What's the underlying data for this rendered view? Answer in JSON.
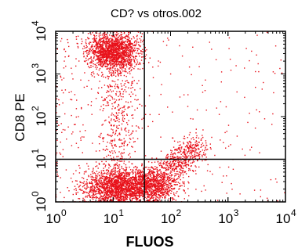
{
  "chart_data": {
    "type": "scatter",
    "title": "CD? vs otros.002",
    "xlabel": "FLUOS",
    "ylabel": "CD8 PE",
    "xscale": "log",
    "yscale": "log",
    "xlim": [
      1,
      10000
    ],
    "ylim": [
      1,
      10000
    ],
    "x_ticks": [
      {
        "base": "10",
        "exp": "0"
      },
      {
        "base": "10",
        "exp": "1"
      },
      {
        "base": "10",
        "exp": "2"
      },
      {
        "base": "10",
        "exp": "3"
      },
      {
        "base": "10",
        "exp": "4"
      }
    ],
    "y_ticks": [
      {
        "base": "10",
        "exp": "0"
      },
      {
        "base": "10",
        "exp": "1"
      },
      {
        "base": "10",
        "exp": "2"
      },
      {
        "base": "10",
        "exp": "3"
      },
      {
        "base": "10",
        "exp": "4"
      }
    ],
    "quadrant_gate": {
      "x": 35,
      "y": 10
    },
    "marker_color": "#e8121b",
    "populations": [
      {
        "name": "dense cluster, low/low",
        "center": [
          12,
          2.2
        ],
        "spread_decades": [
          0.3,
          0.2
        ],
        "relative_density": "very high"
      },
      {
        "name": "dense cluster, mid-x/low-y",
        "center": [
          45,
          2.4
        ],
        "spread_decades": [
          0.25,
          0.2
        ],
        "relative_density": "high"
      },
      {
        "name": "dense cluster, high-y",
        "center": [
          10,
          3500
        ],
        "spread_decades": [
          0.22,
          0.2
        ],
        "relative_density": "very high"
      },
      {
        "name": "vertical streak connecting high-y and low-y",
        "x_center": 12,
        "y_range": [
          3,
          3000
        ],
        "relative_density": "medium"
      },
      {
        "name": "diagonal tail",
        "from": [
          80,
          5
        ],
        "to": [
          300,
          20
        ],
        "relative_density": "medium"
      },
      {
        "name": "sparse background",
        "x_range": [
          1,
          10000
        ],
        "y_range": [
          1,
          10000
        ],
        "relative_density": "low"
      }
    ]
  }
}
